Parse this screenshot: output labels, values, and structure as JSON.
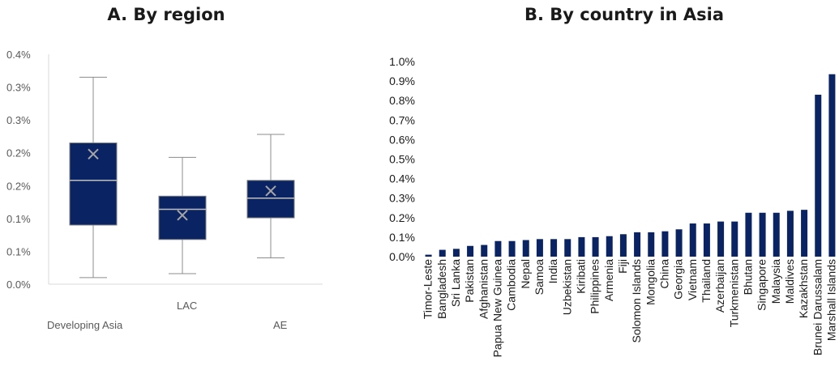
{
  "chart_data": [
    {
      "type": "box",
      "title": "A. By region",
      "ytick_labels": [
        "0.0%",
        "0.1%",
        "0.1%",
        "0.2%",
        "0.2%",
        "0.3%",
        "0.3%",
        "0.4%"
      ],
      "ylim": [
        0,
        0.35
      ],
      "categories": [
        "Developing Asia",
        "LAC",
        "AE"
      ],
      "boxes": [
        {
          "name": "Developing Asia",
          "min": 0.01,
          "q1": 0.09,
          "median": 0.158,
          "q3": 0.215,
          "max": 0.315,
          "mean": 0.198
        },
        {
          "name": "LAC",
          "min": 0.016,
          "q1": 0.068,
          "median": 0.114,
          "q3": 0.134,
          "max": 0.193,
          "mean": 0.105
        },
        {
          "name": "AE",
          "min": 0.04,
          "q1": 0.101,
          "median": 0.131,
          "q3": 0.158,
          "max": 0.228,
          "mean": 0.142
        }
      ],
      "colors": {
        "box": "#0a2463",
        "median": "#bfbfbf",
        "mean": "#a6a6a6",
        "whisker": "#8c8c8c",
        "axis": "#d9d9d9"
      }
    },
    {
      "type": "bar",
      "title": "B. By country in Asia",
      "ytick_labels": [
        "0.0%",
        "0.1%",
        "0.2%",
        "0.3%",
        "0.4%",
        "0.5%",
        "0.6%",
        "0.7%",
        "0.8%",
        "0.9%",
        "1.0%"
      ],
      "ylim": [
        0,
        1.0
      ],
      "categories": [
        "Timor-Leste",
        "Bangladesh",
        "Sri Lanka",
        "Pakistan",
        "Afghanistan",
        "Papua New Guinea",
        "Cambodia",
        "Nepal",
        "Samoa",
        "India",
        "Uzbekistan",
        "Kiribati",
        "Philippines",
        "Armenia",
        "Fiji",
        "Solomon Islands",
        "Mongolia",
        "China",
        "Georgia",
        "Vietnam",
        "Thailand",
        "Azerbaijan",
        "Turkmenistan",
        "Bhutan",
        "Singapore",
        "Malaysia",
        "Maldives",
        "Kazakhstan",
        "Brunei Darussalam",
        "Marshall Islands"
      ],
      "values": [
        0.01,
        0.035,
        0.04,
        0.055,
        0.06,
        0.08,
        0.08,
        0.085,
        0.09,
        0.09,
        0.09,
        0.1,
        0.1,
        0.105,
        0.115,
        0.125,
        0.125,
        0.13,
        0.14,
        0.17,
        0.17,
        0.18,
        0.18,
        0.225,
        0.225,
        0.225,
        0.235,
        0.24,
        0.83,
        0.935
      ],
      "colors": {
        "bar": "#0a2463"
      }
    }
  ]
}
